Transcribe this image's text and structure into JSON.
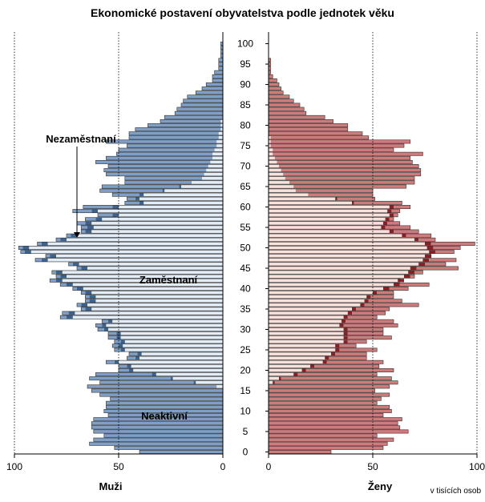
{
  "chart_data": {
    "type": "bar",
    "title": "Ekonomické postavení obyvatelstva podle jednotek věku",
    "left_label": "Muži",
    "right_label": "Ženy",
    "unit_note": "v tisících osob",
    "x_ticks_left": [
      "100",
      "50",
      "0"
    ],
    "x_ticks_right": [
      "0",
      "50",
      "100"
    ],
    "x_tick_values": [
      100,
      50,
      0
    ],
    "x_range": [
      0,
      100
    ],
    "age_ticks": [
      "0",
      "5",
      "10",
      "15",
      "20",
      "25",
      "30",
      "35",
      "40",
      "45",
      "50",
      "55",
      "60",
      "65",
      "70",
      "75",
      "80",
      "85",
      "90",
      "95",
      "100"
    ],
    "age_range": [
      0,
      100
    ],
    "annotations": {
      "unemployed": "Nezaměstnaní",
      "employed": "Zaměstnaní",
      "inactive": "Neaktivní"
    },
    "series_names": [
      "Neaktivní",
      "Nezaměstnaní",
      "Zaměstnaní"
    ],
    "colors": {
      "men_inactive": "#7f9fc6",
      "men_unemployed": "#3c628f",
      "men_employed": "#e3edf8",
      "women_inactive": "#cd7b7b",
      "women_unemployed": "#8a1f24",
      "women_employed": "#fbe1dc",
      "outline": "#2e2e2e",
      "guide": "#000000"
    },
    "men_total": [
      40,
      52,
      64,
      62,
      57,
      62,
      63,
      63,
      62,
      55,
      57,
      56,
      56,
      54,
      59,
      63,
      65,
      59,
      64,
      61,
      50,
      50,
      56,
      46,
      45,
      52,
      53,
      52,
      55,
      55,
      60,
      61,
      58,
      78,
      77,
      68,
      70,
      66,
      66,
      68,
      72,
      78,
      83,
      80,
      82,
      70,
      74,
      90,
      85,
      97,
      98,
      89,
      80,
      75,
      68,
      68,
      70,
      66,
      60,
      72,
      67,
      47,
      46,
      53,
      59,
      58,
      47,
      47,
      56,
      57,
      55,
      61,
      56,
      51,
      50,
      46,
      56,
      45,
      45,
      42,
      36,
      30,
      28,
      23,
      22,
      20,
      19,
      17,
      13,
      10,
      8,
      5,
      5,
      4,
      2,
      2,
      2,
      1,
      1,
      1,
      1
    ],
    "men_unemployed": [
      0,
      0,
      0,
      0,
      0,
      0,
      0,
      0,
      0,
      0,
      0,
      0,
      0,
      0,
      0,
      0,
      0,
      1,
      1,
      2,
      2,
      2,
      2,
      2,
      2,
      2,
      2,
      2,
      2,
      2,
      2,
      2,
      2,
      3,
      3,
      3,
      3,
      3,
      3,
      3,
      3,
      3,
      3,
      3,
      3,
      3,
      3,
      3,
      3,
      3,
      3,
      3,
      3,
      3,
      3,
      3,
      3,
      3,
      3,
      3,
      3,
      2,
      2,
      2,
      1,
      1,
      0,
      0,
      0,
      0,
      0,
      0,
      0,
      0,
      0,
      0,
      0,
      0,
      0,
      0,
      0,
      0,
      0,
      0,
      0,
      0,
      0,
      0,
      0,
      0,
      0,
      0,
      0,
      0,
      0,
      0,
      0,
      0,
      0,
      0,
      0
    ],
    "men_employed": [
      0,
      0,
      0,
      0,
      0,
      0,
      0,
      0,
      0,
      0,
      0,
      0,
      0,
      0,
      0,
      0,
      3,
      13,
      24,
      32,
      43,
      44,
      50,
      40,
      39,
      47,
      48,
      47,
      49,
      49,
      55,
      56,
      53,
      72,
      71,
      63,
      65,
      61,
      61,
      63,
      67,
      72,
      77,
      75,
      77,
      65,
      69,
      84,
      80,
      92,
      93,
      84,
      75,
      70,
      63,
      62,
      63,
      58,
      50,
      60,
      50,
      38,
      40,
      38,
      28,
      20,
      15,
      10,
      9,
      8,
      7,
      6,
      5,
      5,
      4,
      3,
      3,
      2,
      2,
      1,
      1,
      1,
      0,
      0,
      0,
      0,
      0,
      0,
      0,
      0,
      0,
      0,
      0,
      0,
      0,
      0,
      0,
      0,
      0,
      0,
      0
    ],
    "women_total": [
      30,
      55,
      57,
      60,
      52,
      67,
      63,
      62,
      64,
      55,
      59,
      58,
      52,
      54,
      58,
      51,
      58,
      62,
      59,
      52,
      60,
      53,
      55,
      47,
      47,
      52,
      42,
      47,
      59,
      55,
      55,
      62,
      60,
      52,
      56,
      58,
      72,
      64,
      60,
      60,
      67,
      77,
      63,
      70,
      74,
      91,
      85,
      90,
      78,
      89,
      92,
      99,
      80,
      78,
      72,
      68,
      63,
      60,
      62,
      63,
      68,
      64,
      51,
      50,
      50,
      66,
      70,
      70,
      73,
      73,
      72,
      69,
      68,
      74,
      60,
      65,
      68,
      48,
      45,
      38,
      38,
      31,
      27,
      18,
      17,
      15,
      12,
      10,
      7,
      6,
      5,
      4,
      2,
      1,
      1,
      1,
      1,
      0,
      0,
      0,
      0
    ],
    "women_unemployed": [
      0,
      0,
      0,
      0,
      0,
      0,
      0,
      0,
      0,
      0,
      0,
      0,
      0,
      0,
      0,
      0,
      0,
      1,
      1,
      2,
      2,
      2,
      2,
      2,
      2,
      2,
      2,
      2,
      2,
      2,
      2,
      2,
      2,
      2,
      2,
      2,
      2,
      2,
      2,
      2,
      3,
      3,
      3,
      3,
      3,
      3,
      3,
      3,
      3,
      3,
      3,
      3,
      2,
      2,
      2,
      2,
      2,
      2,
      2,
      2,
      2,
      1,
      1,
      0,
      0,
      0,
      0,
      0,
      0,
      0,
      0,
      0,
      0,
      0,
      0,
      0,
      0,
      0,
      0,
      0,
      0,
      0,
      0,
      0,
      0,
      0,
      0,
      0,
      0,
      0,
      0,
      0,
      0,
      0,
      0,
      0,
      0,
      0,
      0,
      0,
      0
    ],
    "women_employed": [
      0,
      0,
      0,
      0,
      0,
      0,
      0,
      0,
      0,
      0,
      0,
      0,
      0,
      0,
      0,
      0,
      0,
      2,
      5,
      12,
      16,
      20,
      26,
      27,
      30,
      32,
      32,
      36,
      36,
      36,
      36,
      34,
      35,
      36,
      38,
      40,
      44,
      46,
      47,
      50,
      55,
      60,
      62,
      65,
      67,
      68,
      72,
      74,
      75,
      77,
      76,
      75,
      70,
      64,
      58,
      54,
      55,
      56,
      58,
      57,
      58,
      40,
      32,
      19,
      13,
      12,
      10,
      8,
      7,
      6,
      5,
      4,
      3,
      2,
      2,
      1,
      1,
      1,
      0,
      0,
      0,
      0,
      0,
      0,
      0,
      0,
      0,
      0,
      0,
      0,
      0,
      0,
      0,
      0,
      0,
      0,
      0,
      0,
      0,
      0,
      0
    ]
  }
}
